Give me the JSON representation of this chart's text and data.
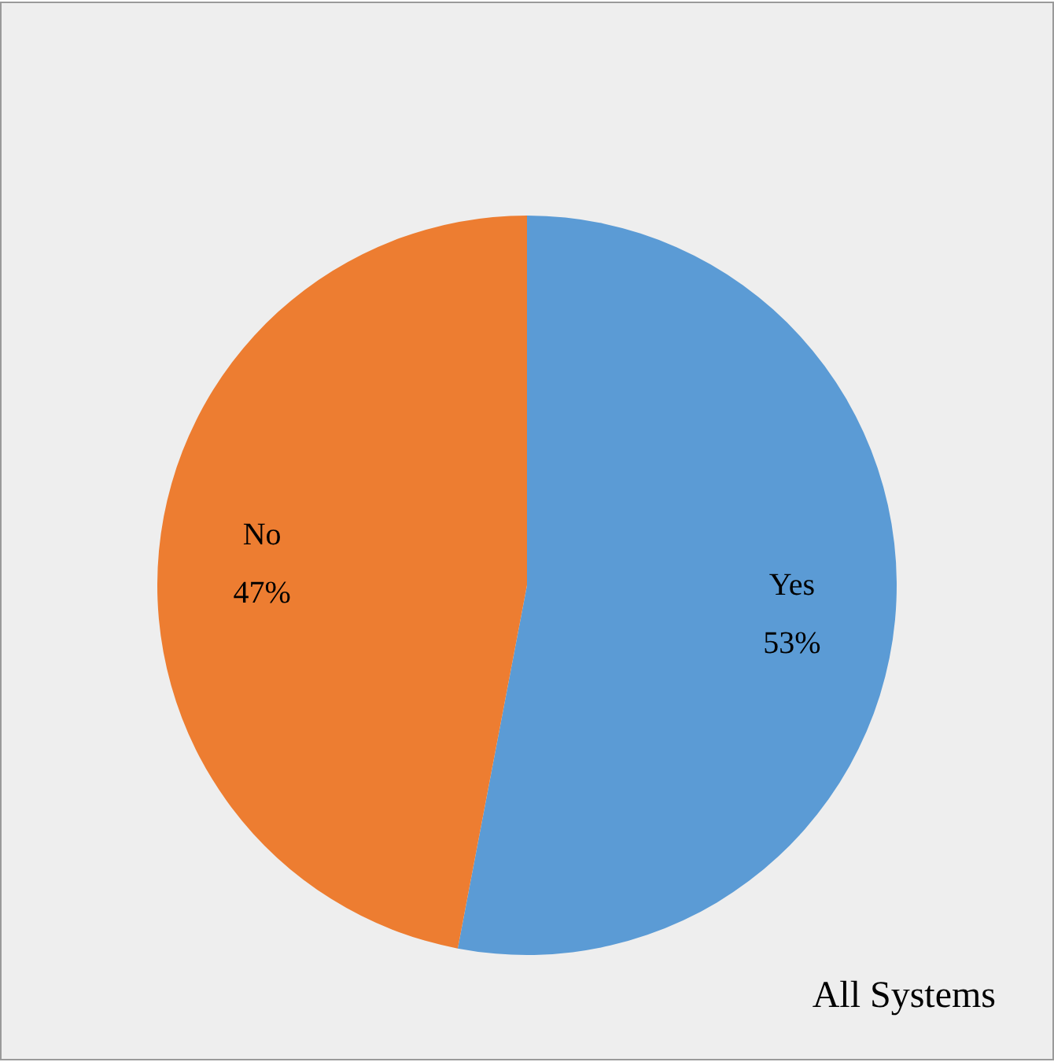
{
  "chart_data": {
    "type": "pie",
    "categories": [
      "Yes",
      "No"
    ],
    "values": [
      53,
      47
    ],
    "colors": [
      "#5b9bd5",
      "#ed7d31"
    ],
    "value_labels": [
      "53%",
      "47%"
    ],
    "annotations": [
      "All Systems"
    ],
    "legend": false
  }
}
